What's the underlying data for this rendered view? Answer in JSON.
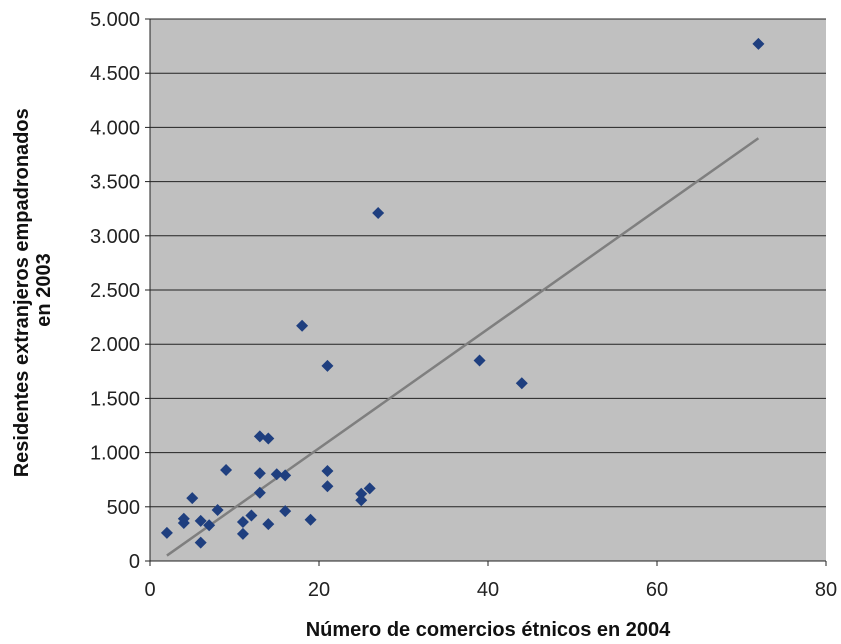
{
  "chart_data": {
    "type": "scatter",
    "xlabel": "Número de comercios étnicos en 2004",
    "ylabel_lines": [
      "Residentes extranjeros empadronados",
      "en 2003"
    ],
    "xlim": [
      0,
      80
    ],
    "ylim": [
      0,
      5000
    ],
    "x_ticks": [
      0,
      20,
      40,
      60,
      80
    ],
    "x_tick_labels": [
      "0",
      "20",
      "40",
      "60",
      "80"
    ],
    "y_ticks": [
      0,
      500,
      1000,
      1500,
      2000,
      2500,
      3000,
      3500,
      4000,
      4500,
      5000
    ],
    "y_tick_labels": [
      "0",
      "500",
      "1.000",
      "1.500",
      "2.000",
      "2.500",
      "3.000",
      "3.500",
      "4.000",
      "4.500",
      "5.000"
    ],
    "grid": "horizontal",
    "legend": "none",
    "colors": {
      "plot_background": "#c0c0c0",
      "marker": "#1f3f7f",
      "trendline": "#7f7f7f",
      "gridline": "#222222"
    },
    "points": [
      {
        "x": 2,
        "y": 260
      },
      {
        "x": 4,
        "y": 350
      },
      {
        "x": 4,
        "y": 390
      },
      {
        "x": 5,
        "y": 580
      },
      {
        "x": 6,
        "y": 370
      },
      {
        "x": 6,
        "y": 170
      },
      {
        "x": 7,
        "y": 330
      },
      {
        "x": 8,
        "y": 470
      },
      {
        "x": 9,
        "y": 840
      },
      {
        "x": 11,
        "y": 250
      },
      {
        "x": 11,
        "y": 360
      },
      {
        "x": 12,
        "y": 420
      },
      {
        "x": 13,
        "y": 810
      },
      {
        "x": 13,
        "y": 630
      },
      {
        "x": 13,
        "y": 1150
      },
      {
        "x": 14,
        "y": 1130
      },
      {
        "x": 14,
        "y": 340
      },
      {
        "x": 15,
        "y": 800
      },
      {
        "x": 16,
        "y": 790
      },
      {
        "x": 16,
        "y": 460
      },
      {
        "x": 18,
        "y": 2170
      },
      {
        "x": 19,
        "y": 380
      },
      {
        "x": 21,
        "y": 1800
      },
      {
        "x": 21,
        "y": 830
      },
      {
        "x": 21,
        "y": 690
      },
      {
        "x": 25,
        "y": 620
      },
      {
        "x": 25,
        "y": 560
      },
      {
        "x": 26,
        "y": 670
      },
      {
        "x": 27,
        "y": 3210
      },
      {
        "x": 39,
        "y": 1850
      },
      {
        "x": 44,
        "y": 1640
      },
      {
        "x": 72,
        "y": 4770
      }
    ],
    "trendline": {
      "x": [
        2,
        72
      ],
      "y": [
        50,
        3900
      ]
    }
  }
}
